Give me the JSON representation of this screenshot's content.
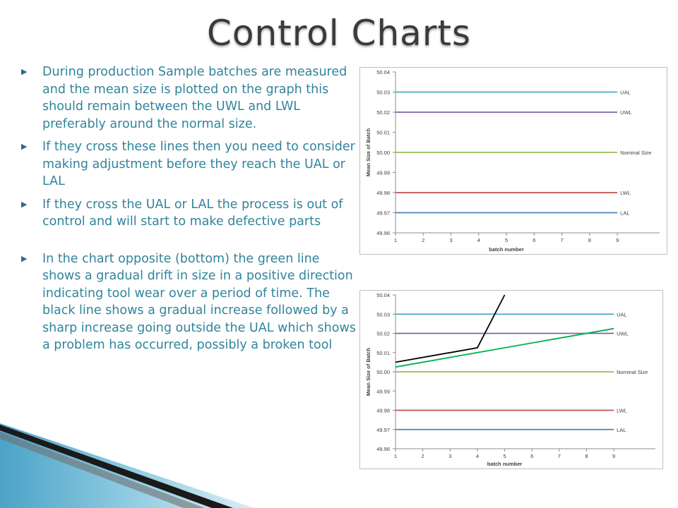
{
  "slide": {
    "title": "Control Charts",
    "bullets": [
      "During production Sample batches are measured and the mean size is plotted on the graph this should remain between the UWL and LWL preferably around the normal size.",
      " If they cross these lines then you need to consider making adjustment before they reach the UAL or LAL",
      "If they cross the UAL or LAL the process is out of control and will start to make defective parts",
      "In the chart opposite (bottom) the green line shows a gradual drift in size in a positive direction indicating tool wear over a period of time. The black line shows a gradual increase followed by a sharp increase going outside the UAL which shows a problem has occurred, possibly a broken tool"
    ],
    "bullet_icon": "arrow-right-icon"
  },
  "chart_data": [
    {
      "type": "line",
      "xlabel": "batch number",
      "ylabel": "Mean Size of Batch",
      "x_ticks": [
        1,
        2,
        3,
        4,
        5,
        6,
        7,
        8,
        9
      ],
      "xlim": [
        1,
        9
      ],
      "ylim": [
        49.96,
        50.04
      ],
      "y_ticks": [
        "49.96",
        "49.97",
        "49.98",
        "49.99",
        "50.00",
        "50.01",
        "50.02",
        "50.03",
        "50.04"
      ],
      "reference_lines": [
        {
          "label": "UAL",
          "value": 50.03,
          "color": "#4bacc6"
        },
        {
          "label": "UWL",
          "value": 50.02,
          "color": "#8064a2"
        },
        {
          "label": "Nominal Size",
          "value": 50.0,
          "color": "#9bbb59"
        },
        {
          "label": "LWL",
          "value": 49.98,
          "color": "#c0504d"
        },
        {
          "label": "LAL",
          "value": 49.97,
          "color": "#4f81bd"
        }
      ],
      "series": []
    },
    {
      "type": "line",
      "xlabel": "batch number",
      "ylabel": "Mean Size of Batch",
      "x_ticks": [
        1,
        2,
        3,
        4,
        5,
        6,
        7,
        8,
        9
      ],
      "xlim": [
        1,
        9
      ],
      "ylim": [
        49.96,
        50.04
      ],
      "y_ticks": [
        "49.96",
        "49.97",
        "49.98",
        "49.99",
        "50.00",
        "50.01",
        "50.02",
        "50.03",
        "50.04"
      ],
      "reference_lines": [
        {
          "label": "UAL",
          "value": 50.03,
          "color": "#4bacc6"
        },
        {
          "label": "UWL",
          "value": 50.02,
          "color": "#8064a2"
        },
        {
          "label": "Nominal Size",
          "value": 50.0,
          "color": "#9bbb59"
        },
        {
          "label": "LWL",
          "value": 49.98,
          "color": "#c0504d"
        },
        {
          "label": "LAL",
          "value": 49.97,
          "color": "#4f81bd"
        }
      ],
      "series": [
        {
          "color": "#00b050",
          "x": [
            1,
            9
          ],
          "y": [
            50.0025,
            50.0225
          ]
        },
        {
          "color": "#000000",
          "x": [
            1,
            4,
            5
          ],
          "y": [
            50.005,
            50.0125,
            50.04
          ]
        }
      ]
    }
  ]
}
